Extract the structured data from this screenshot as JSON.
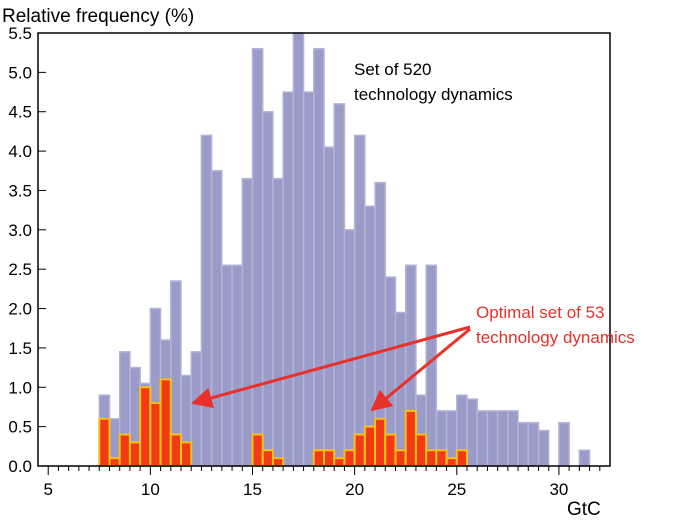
{
  "chart_data": {
    "type": "bar",
    "ylabel": "Relative frequency (%)",
    "xlabel": "GtC",
    "xlim": [
      4.5,
      32.5
    ],
    "ylim": [
      0,
      5.5
    ],
    "bin_width": 0.5,
    "x_ticks": [
      "5",
      "10",
      "15",
      "20",
      "25",
      "30"
    ],
    "y_ticks": [
      "0.0",
      "0.5",
      "1.0",
      "1.5",
      "2.0",
      "2.5",
      "3.0",
      "3.5",
      "4.0",
      "4.5",
      "5.0",
      "5.5"
    ],
    "grid": false,
    "series": [
      {
        "name": "Set of 520 technology dynamics",
        "color": "#9b9bc9",
        "edge": "#b4b4d6",
        "x": [
          7.75,
          8.25,
          8.75,
          9.25,
          9.75,
          10.25,
          10.75,
          11.25,
          11.75,
          12.25,
          12.75,
          13.25,
          13.75,
          14.25,
          14.75,
          15.25,
          15.75,
          16.25,
          16.75,
          17.25,
          17.75,
          18.25,
          18.75,
          19.25,
          19.75,
          20.25,
          20.75,
          21.25,
          21.75,
          22.25,
          22.75,
          23.25,
          23.75,
          24.25,
          24.75,
          25.25,
          25.75,
          26.25,
          26.75,
          27.25,
          27.75,
          28.25,
          28.75,
          29.25,
          29.75,
          30.25,
          30.75,
          31.25
        ],
        "values": [
          0.9,
          0.6,
          1.45,
          1.25,
          1.05,
          2.0,
          1.6,
          2.35,
          1.15,
          1.45,
          4.2,
          3.75,
          2.55,
          2.55,
          3.65,
          5.3,
          4.5,
          3.65,
          4.75,
          5.5,
          4.75,
          5.3,
          4.05,
          4.6,
          3.0,
          4.2,
          3.3,
          3.6,
          2.4,
          1.95,
          2.55,
          0.9,
          2.55,
          0.7,
          0.7,
          0.9,
          0.85,
          0.7,
          0.7,
          0.7,
          0.7,
          0.55,
          0.55,
          0.45,
          0.0,
          0.55,
          0.0,
          0.2
        ]
      },
      {
        "name": "Optimal set of 53 technology dynamics",
        "color": "#f23a14",
        "edge": "#f2c21a",
        "x": [
          7.75,
          8.25,
          8.75,
          9.25,
          9.75,
          10.25,
          10.75,
          11.25,
          11.75,
          12.25,
          12.75,
          13.25,
          13.75,
          14.25,
          14.75,
          15.25,
          15.75,
          16.25,
          16.75,
          17.25,
          17.75,
          18.25,
          18.75,
          19.25,
          19.75,
          20.25,
          20.75,
          21.25,
          21.75,
          22.25,
          22.75,
          23.25,
          23.75,
          24.25,
          24.75,
          25.25,
          25.75
        ],
        "values": [
          0.6,
          0.1,
          0.4,
          0.3,
          1.0,
          0.8,
          1.1,
          0.4,
          0.3,
          0,
          0,
          0,
          0,
          0,
          0,
          0.4,
          0.2,
          0.1,
          0,
          0,
          0,
          0.2,
          0.2,
          0.1,
          0.2,
          0.4,
          0.5,
          0.6,
          0.4,
          0.2,
          0.7,
          0.4,
          0.2,
          0.2,
          0.1,
          0.2,
          0
        ]
      }
    ],
    "annotations": {
      "set520": [
        "Set of 520",
        "technology dynamics"
      ],
      "optimal": [
        "Optimal set of 53",
        "technology dynamics"
      ],
      "arrow_color": "#e8312a"
    }
  }
}
